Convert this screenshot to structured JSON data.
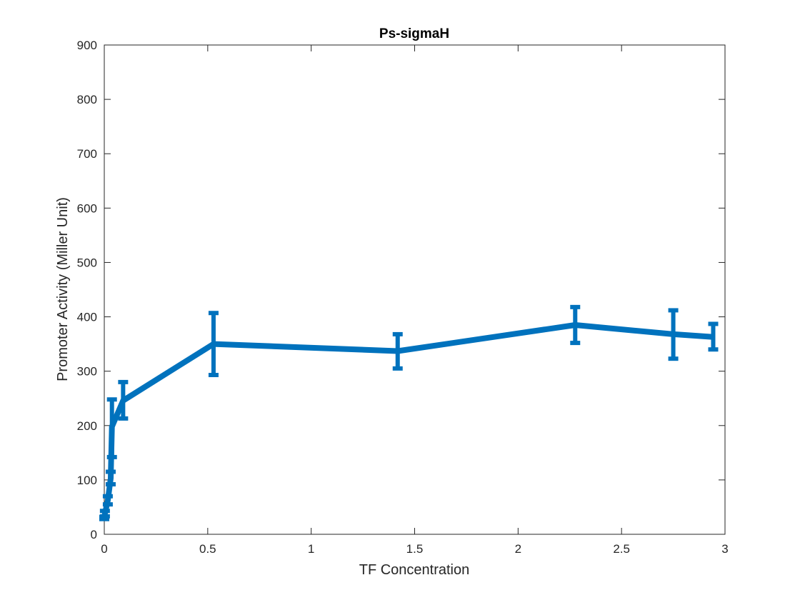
{
  "chart_data": {
    "type": "line",
    "title": "Ps-sigmaH",
    "xlabel": "TF Concentration",
    "ylabel": "Promoter Activity (Miller Unit)",
    "xlim": [
      0,
      3
    ],
    "ylim": [
      0,
      900
    ],
    "xticks": [
      0,
      0.5,
      1,
      1.5,
      2,
      2.5,
      3
    ],
    "xtick_labels": [
      "0",
      "0.5",
      "1",
      "1.5",
      "2",
      "2.5",
      "3"
    ],
    "yticks": [
      0,
      100,
      200,
      300,
      400,
      500,
      600,
      700,
      800,
      900
    ],
    "ytick_labels": [
      "0",
      "100",
      "200",
      "300",
      "400",
      "500",
      "600",
      "700",
      "800",
      "900"
    ],
    "grid": false,
    "color": "#0072BD",
    "series": [
      {
        "x": [
          0.0,
          0.003,
          0.017,
          0.031,
          0.037,
          0.091,
          0.528,
          1.418,
          2.276,
          2.75,
          2.943
        ],
        "y": [
          30,
          38,
          62,
          103,
          198,
          246,
          350,
          337,
          385,
          368,
          363
        ],
        "err_low": [
          28,
          33,
          55,
          92,
          142,
          213,
          293,
          305,
          352,
          323,
          340
        ],
        "err_high": [
          32,
          43,
          70,
          115,
          248,
          280,
          407,
          368,
          418,
          412,
          387
        ]
      }
    ]
  }
}
